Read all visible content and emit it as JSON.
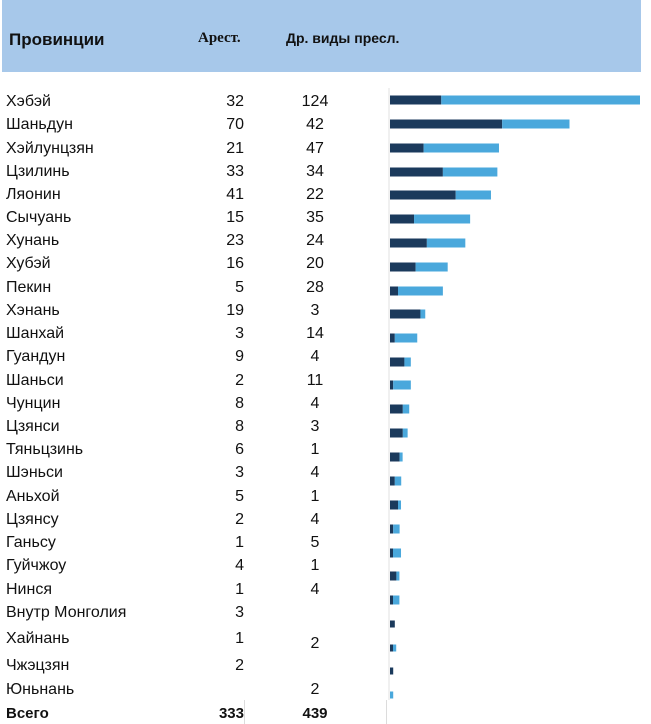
{
  "header": {
    "provinces": "Провинции",
    "arrests": "Арест.",
    "other": "Др. виды пресл."
  },
  "rows": [
    {
      "province": "Хэбэй",
      "arrests": "32",
      "other": "124"
    },
    {
      "province": "Шаньдун",
      "arrests": "70",
      "other": "42"
    },
    {
      "province": "Хэйлунцзян",
      "arrests": "21",
      "other": "47"
    },
    {
      "province": "Цзилинь",
      "arrests": "33",
      "other": "34"
    },
    {
      "province": "Ляонин",
      "arrests": "41",
      "other": "22"
    },
    {
      "province": "Сычуань",
      "arrests": "15",
      "other": "35"
    },
    {
      "province": "Хунань",
      "arrests": "23",
      "other": "24"
    },
    {
      "province": "Хубэй",
      "arrests": "16",
      "other": "20"
    },
    {
      "province": "Пекин",
      "arrests": "5",
      "other": "28"
    },
    {
      "province": "Хэнань",
      "arrests": "19",
      "other": "3"
    },
    {
      "province": "Шанхай",
      "arrests": "3",
      "other": "14"
    },
    {
      "province": "Гуандун",
      "arrests": "9",
      "other": "4"
    },
    {
      "province": "Шаньси",
      "arrests": "2",
      "other": "11"
    },
    {
      "province": "Чунцин",
      "arrests": "8",
      "other": "4"
    },
    {
      "province": "Цзянси",
      "arrests": "8",
      "other": "3"
    },
    {
      "province": "Тяньцзинь",
      "arrests": "6",
      "other": "1"
    },
    {
      "province": "Шэньси",
      "arrests": "3",
      "other": "4"
    },
    {
      "province": "Аньхой",
      "arrests": "5",
      "other": "1"
    },
    {
      "province": "Цзянсу",
      "arrests": "2",
      "other": "4"
    },
    {
      "province": "Ганьсу",
      "arrests": "1",
      "other": "5"
    },
    {
      "province": "Гуйчжоу",
      "arrests": "4",
      "other": "1"
    },
    {
      "province": "Нинся",
      "arrests": "1",
      "other": "4"
    },
    {
      "province": "Внутр Монголия",
      "arrests": "3",
      "other": ""
    },
    {
      "province": "Хайнань",
      "arrests": "1",
      "other": "2"
    },
    {
      "province": "Чжэцзян",
      "arrests": "2",
      "other": ""
    },
    {
      "province": "Юньнань",
      "arrests": "",
      "other": "2"
    }
  ],
  "total": {
    "label": "Всего",
    "arrests": "333",
    "other": "439"
  },
  "colors": {
    "header_bg": "#a7c8ea",
    "arrests": "#1b3a5c",
    "other": "#4aa8dc"
  },
  "chart_data": {
    "type": "bar",
    "orientation": "horizontal",
    "stacked": true,
    "categories": [
      "Хэбэй",
      "Шаньдун",
      "Хэйлунцзян",
      "Цзилинь",
      "Ляонин",
      "Сычуань",
      "Хунань",
      "Хубэй",
      "Пекин",
      "Хэнань",
      "Шанхай",
      "Гуандун",
      "Шаньси",
      "Чунцин",
      "Цзянси",
      "Тяньцзинь",
      "Шэньси",
      "Аньхой",
      "Цзянсу",
      "Ганьсу",
      "Гуйчжоу",
      "Нинся",
      "Внутр Монголия",
      "Хайнань",
      "Чжэцзян",
      "Юньнань"
    ],
    "series": [
      {
        "name": "Арест.",
        "color": "#1b3a5c",
        "values": [
          32,
          70,
          21,
          33,
          41,
          15,
          23,
          16,
          5,
          19,
          3,
          9,
          2,
          8,
          8,
          6,
          3,
          5,
          2,
          1,
          4,
          1,
          3,
          1,
          2,
          0
        ]
      },
      {
        "name": "Др. виды пресл.",
        "color": "#4aa8dc",
        "values": [
          124,
          42,
          47,
          34,
          22,
          35,
          24,
          20,
          28,
          3,
          14,
          4,
          11,
          4,
          3,
          1,
          4,
          1,
          4,
          5,
          1,
          4,
          0,
          2,
          0,
          2
        ]
      }
    ],
    "xlim": [
      0,
      156
    ],
    "grid": false,
    "legend": "none"
  }
}
